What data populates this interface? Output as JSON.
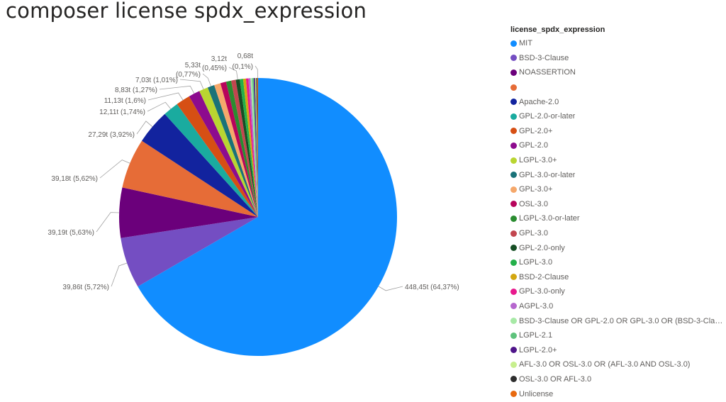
{
  "title": "composer license spdx_expression",
  "chart_data": {
    "type": "pie",
    "title": "composer license spdx_expression",
    "legend_title": "license_spdx_expression",
    "legend_position": "right",
    "slices": [
      {
        "label": "MIT",
        "value": 448.45,
        "percent": 64.37,
        "data_label": "448,45t (64,37%)",
        "color": "#118DFF"
      },
      {
        "label": "BSD-3-Clause",
        "value": 39.86,
        "percent": 5.72,
        "data_label": "39,86t (5,72%)",
        "color": "#744EC2"
      },
      {
        "label": "NOASSERTION",
        "value": 39.19,
        "percent": 5.63,
        "data_label": "39,19t (5,63%)",
        "color": "#6B007B"
      },
      {
        "label": "",
        "value": 39.18,
        "percent": 5.62,
        "data_label": "39,18t (5,62%)",
        "color": "#E66C37"
      },
      {
        "label": "Apache-2.0",
        "value": 27.29,
        "percent": 3.92,
        "data_label": "27,29t (3,92%)",
        "color": "#12239E"
      },
      {
        "label": "GPL-2.0-or-later",
        "value": 12.11,
        "percent": 1.74,
        "data_label": "12,11t (1,74%)",
        "color": "#1AAB9F"
      },
      {
        "label": "GPL-2.0+",
        "value": 11.13,
        "percent": 1.6,
        "data_label": "11,13t (1,6%)",
        "color": "#D64F14"
      },
      {
        "label": "GPL-2.0",
        "value": 8.83,
        "percent": 1.27,
        "data_label": "8,83t (1,27%)",
        "color": "#8D0B8E"
      },
      {
        "label": "LGPL-3.0+",
        "value": 7.03,
        "percent": 1.01,
        "data_label": "7,03t (1,01%)",
        "color": "#B9D531"
      },
      {
        "label": "GPL-3.0-or-later",
        "value": 5.33,
        "percent": 0.77,
        "data_label": "5,33t (0,77%)",
        "color": "#197278"
      },
      {
        "label": "GPL-3.0+",
        "value": 5.0,
        "percent": 0.72,
        "data_label": "",
        "color": "#F5A86B"
      },
      {
        "label": "OSL-3.0",
        "value": 4.5,
        "percent": 0.65,
        "data_label": "",
        "color": "#B7045B"
      },
      {
        "label": "LGPL-3.0-or-later",
        "value": 4.0,
        "percent": 0.57,
        "data_label": "",
        "color": "#2A8C30"
      },
      {
        "label": "GPL-3.0",
        "value": 3.6,
        "percent": 0.52,
        "data_label": "",
        "color": "#C2464F"
      },
      {
        "label": "GPL-2.0-only",
        "value": 3.12,
        "percent": 0.45,
        "data_label": "3,12t (0,45%)",
        "color": "#164E24"
      },
      {
        "label": "LGPL-3.0",
        "value": 2.6,
        "percent": 0.37,
        "data_label": "",
        "color": "#24B04A"
      },
      {
        "label": "BSD-2-Clause",
        "value": 2.2,
        "percent": 0.32,
        "data_label": "",
        "color": "#D3A710"
      },
      {
        "label": "GPL-3.0-only",
        "value": 1.9,
        "percent": 0.27,
        "data_label": "",
        "color": "#E8198D"
      },
      {
        "label": "AGPL-3.0",
        "value": 1.6,
        "percent": 0.23,
        "data_label": "",
        "color": "#B667CE"
      },
      {
        "label": "BSD-3-Clause OR GPL-2.0 OR GPL-3.0 OR (BSD-3-Clause ...",
        "value": 1.4,
        "percent": 0.2,
        "data_label": "",
        "color": "#A7E9A6"
      },
      {
        "label": "LGPL-2.1",
        "value": 1.2,
        "percent": 0.17,
        "data_label": "",
        "color": "#5EC27C"
      },
      {
        "label": "LGPL-2.0+",
        "value": 1.0,
        "percent": 0.14,
        "data_label": "",
        "color": "#4F158A"
      },
      {
        "label": "AFL-3.0 OR OSL-3.0 OR (AFL-3.0 AND OSL-3.0)",
        "value": 0.85,
        "percent": 0.12,
        "data_label": "",
        "color": "#C7EF8E"
      },
      {
        "label": "OSL-3.0 OR AFL-3.0",
        "value": 0.75,
        "percent": 0.11,
        "data_label": "",
        "color": "#2E2E2E"
      },
      {
        "label": "Unlicense",
        "value": 0.68,
        "percent": 0.1,
        "data_label": "0,68t (0,1%)",
        "color": "#E8690E"
      }
    ]
  }
}
